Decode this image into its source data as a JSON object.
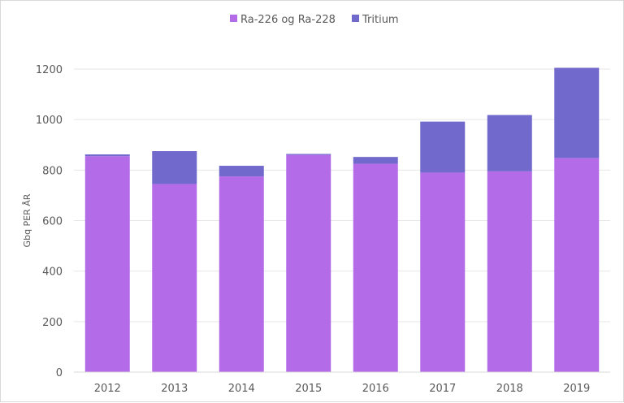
{
  "chart_data": {
    "type": "bar",
    "stacked": true,
    "categories": [
      "2012",
      "2013",
      "2014",
      "2015",
      "2016",
      "2017",
      "2018",
      "2019"
    ],
    "series": [
      {
        "name": "Ra-226 og Ra-228",
        "color": "#b36be8",
        "values": [
          855,
          745,
          775,
          860,
          825,
          790,
          795,
          848
        ]
      },
      {
        "name": "Tritium",
        "color": "#7169cb",
        "values": [
          7,
          130,
          42,
          4,
          27,
          202,
          223,
          357
        ]
      }
    ],
    "ylabel": "Gbq PER ÅR",
    "ylim": [
      0,
      1200
    ],
    "yticks": [
      "0",
      "200",
      "400",
      "600",
      "800",
      "1000",
      "1200"
    ],
    "grid": true,
    "legend_position": "top-center"
  }
}
